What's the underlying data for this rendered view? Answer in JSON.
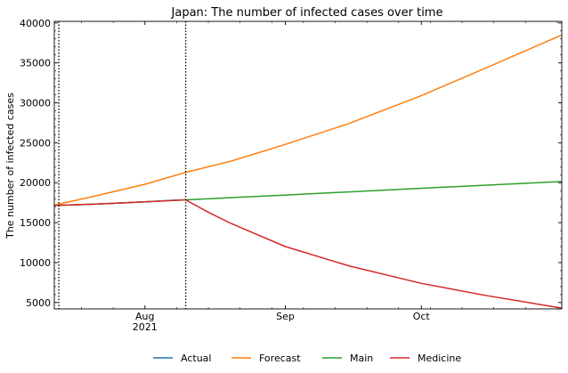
{
  "chart_data": {
    "type": "line",
    "title": "Japan: The number of infected cases over time",
    "ylabel": "The number of infected cases",
    "xlabel": "",
    "x_range": [
      "2021-07-12",
      "2021-11-01"
    ],
    "ylim": [
      4200,
      40200
    ],
    "y_ticks": [
      5000,
      10000,
      15000,
      20000,
      25000,
      30000,
      35000,
      40000
    ],
    "x_ticks": [
      {
        "date": "2021-08-01",
        "label": "Aug",
        "sublabel": "2021"
      },
      {
        "date": "2021-09-01",
        "label": "Sep",
        "sublabel": ""
      },
      {
        "date": "2021-10-01",
        "label": "Oct",
        "sublabel": ""
      }
    ],
    "vlines": [
      "2021-07-13",
      "2021-08-10"
    ],
    "legend_position": "bottom",
    "series": [
      {
        "name": "Actual",
        "color": "#1f77b4",
        "points": [
          [
            "2021-07-12",
            17150
          ],
          [
            "2021-07-20",
            17300
          ],
          [
            "2021-07-28",
            17500
          ],
          [
            "2021-08-04",
            17700
          ],
          [
            "2021-08-09",
            17850
          ]
        ]
      },
      {
        "name": "Forecast",
        "color": "#ff7f0e",
        "points": [
          [
            "2021-07-12",
            17200
          ],
          [
            "2021-07-20",
            18200
          ],
          [
            "2021-08-01",
            19800
          ],
          [
            "2021-08-10",
            21300
          ],
          [
            "2021-08-20",
            22700
          ],
          [
            "2021-09-01",
            24800
          ],
          [
            "2021-09-15",
            27400
          ],
          [
            "2021-10-01",
            30900
          ],
          [
            "2021-10-15",
            34300
          ],
          [
            "2021-11-01",
            38500
          ]
        ]
      },
      {
        "name": "Main",
        "color": "#2ca02c",
        "points": [
          [
            "2021-07-12",
            17150
          ],
          [
            "2021-07-20",
            17300
          ],
          [
            "2021-08-01",
            17600
          ],
          [
            "2021-08-10",
            17850
          ],
          [
            "2021-09-01",
            18450
          ],
          [
            "2021-10-01",
            19300
          ],
          [
            "2021-11-01",
            20150
          ]
        ]
      },
      {
        "name": "Medicine",
        "color": "#d62728",
        "points": [
          [
            "2021-07-12",
            17150
          ],
          [
            "2021-07-20",
            17300
          ],
          [
            "2021-08-01",
            17600
          ],
          [
            "2021-08-10",
            17850
          ],
          [
            "2021-08-15",
            16300
          ],
          [
            "2021-08-20",
            14900
          ],
          [
            "2021-09-01",
            12000
          ],
          [
            "2021-09-15",
            9600
          ],
          [
            "2021-10-01",
            7400
          ],
          [
            "2021-10-15",
            5900
          ],
          [
            "2021-11-01",
            4300
          ]
        ]
      }
    ]
  }
}
